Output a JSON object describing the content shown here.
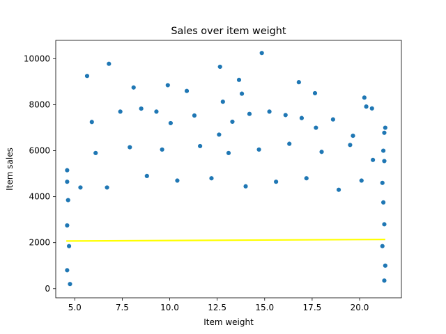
{
  "chart_data": {
    "type": "scatter",
    "title": "Sales over item weight",
    "xlabel": "Item weight",
    "ylabel": "Item sales",
    "xlim": [
      4.0,
      22.2
    ],
    "ylim": [
      -400,
      10800
    ],
    "xticks": [
      5.0,
      7.5,
      10.0,
      12.5,
      15.0,
      17.5,
      20.0
    ],
    "xtick_labels": [
      "5.0",
      "7.5",
      "10.0",
      "12.5",
      "15.0",
      "17.5",
      "20.0"
    ],
    "yticks": [
      0,
      2000,
      4000,
      6000,
      8000,
      10000
    ],
    "ytick_labels": [
      "0",
      "2000",
      "4000",
      "6000",
      "8000",
      "10000"
    ],
    "grid": false,
    "point_color": "#1f77b4",
    "point_edge_color": "#ffffff",
    "trendline": {
      "color": "#ffff00",
      "x": [
        4.555,
        21.35
      ],
      "y": [
        2070,
        2140
      ]
    },
    "points": [
      [
        5.65,
        9250
      ],
      [
        6.8,
        9780
      ],
      [
        12.65,
        9650
      ],
      [
        14.85,
        10250
      ],
      [
        8.1,
        8750
      ],
      [
        9.9,
        8850
      ],
      [
        10.9,
        8600
      ],
      [
        12.8,
        8130
      ],
      [
        13.65,
        9080
      ],
      [
        13.8,
        8480
      ],
      [
        16.8,
        8980
      ],
      [
        17.65,
        8500
      ],
      [
        20.25,
        8310
      ],
      [
        20.35,
        7920
      ],
      [
        20.65,
        7840
      ],
      [
        5.9,
        7250
      ],
      [
        7.4,
        7700
      ],
      [
        8.5,
        7830
      ],
      [
        9.3,
        7700
      ],
      [
        10.05,
        7200
      ],
      [
        11.3,
        7530
      ],
      [
        12.6,
        6700
      ],
      [
        13.3,
        7260
      ],
      [
        14.2,
        7600
      ],
      [
        15.25,
        7700
      ],
      [
        16.1,
        7550
      ],
      [
        16.95,
        7420
      ],
      [
        17.7,
        7000
      ],
      [
        18.6,
        7360
      ],
      [
        19.65,
        6650
      ],
      [
        21.35,
        7000
      ],
      [
        21.3,
        6780
      ],
      [
        21.25,
        6000
      ],
      [
        4.6,
        5150
      ],
      [
        4.6,
        4650
      ],
      [
        4.65,
        3850
      ],
      [
        4.6,
        2750
      ],
      [
        4.7,
        1850
      ],
      [
        4.6,
        800
      ],
      [
        4.75,
        200
      ],
      [
        21.3,
        5550
      ],
      [
        21.2,
        4600
      ],
      [
        21.25,
        3750
      ],
      [
        21.3,
        2800
      ],
      [
        21.2,
        1850
      ],
      [
        21.35,
        1000
      ],
      [
        21.3,
        350
      ],
      [
        5.3,
        4400
      ],
      [
        6.1,
        5900
      ],
      [
        6.7,
        4400
      ],
      [
        7.9,
        6150
      ],
      [
        8.8,
        4900
      ],
      [
        9.6,
        6050
      ],
      [
        10.4,
        4700
      ],
      [
        11.6,
        6200
      ],
      [
        12.2,
        4800
      ],
      [
        13.1,
        5900
      ],
      [
        14.0,
        4450
      ],
      [
        14.7,
        6050
      ],
      [
        15.6,
        4650
      ],
      [
        16.3,
        6300
      ],
      [
        17.2,
        4800
      ],
      [
        18.0,
        5950
      ],
      [
        18.9,
        4300
      ],
      [
        19.5,
        6250
      ],
      [
        20.1,
        4700
      ],
      [
        20.7,
        5600
      ]
    ]
  }
}
